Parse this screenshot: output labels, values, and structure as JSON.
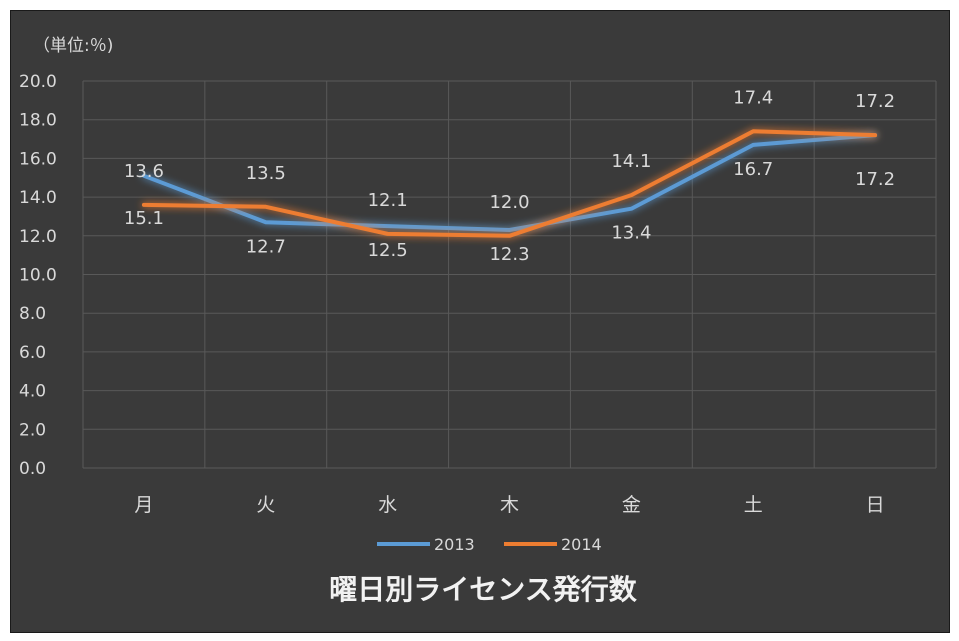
{
  "chart_data": {
    "type": "line",
    "title": "曜日別ライセンス発行数",
    "unit_label": "（単位:％)",
    "categories": [
      "月",
      "火",
      "水",
      "木",
      "金",
      "土",
      "日"
    ],
    "y_ticks": [
      "0.0",
      "2.0",
      "4.0",
      "6.0",
      "8.0",
      "10.0",
      "12.0",
      "14.0",
      "16.0",
      "18.0",
      "20.0"
    ],
    "ylim": [
      0,
      20
    ],
    "grid": true,
    "legend_position": "bottom",
    "series": [
      {
        "name": "2013",
        "color": "#5b9bd5",
        "values": [
          15.1,
          12.7,
          12.5,
          12.3,
          13.4,
          16.7,
          17.2
        ],
        "labels": [
          "15.1",
          "12.7",
          "12.5",
          "12.3",
          "13.4",
          "16.7",
          "17.2"
        ]
      },
      {
        "name": "2014",
        "color": "#ed7d31",
        "values": [
          13.6,
          13.5,
          12.1,
          12.0,
          14.1,
          17.4,
          17.2
        ],
        "labels": [
          "13.6",
          "13.5",
          "12.1",
          "12.0",
          "14.1",
          "17.4",
          "17.2"
        ]
      }
    ]
  }
}
